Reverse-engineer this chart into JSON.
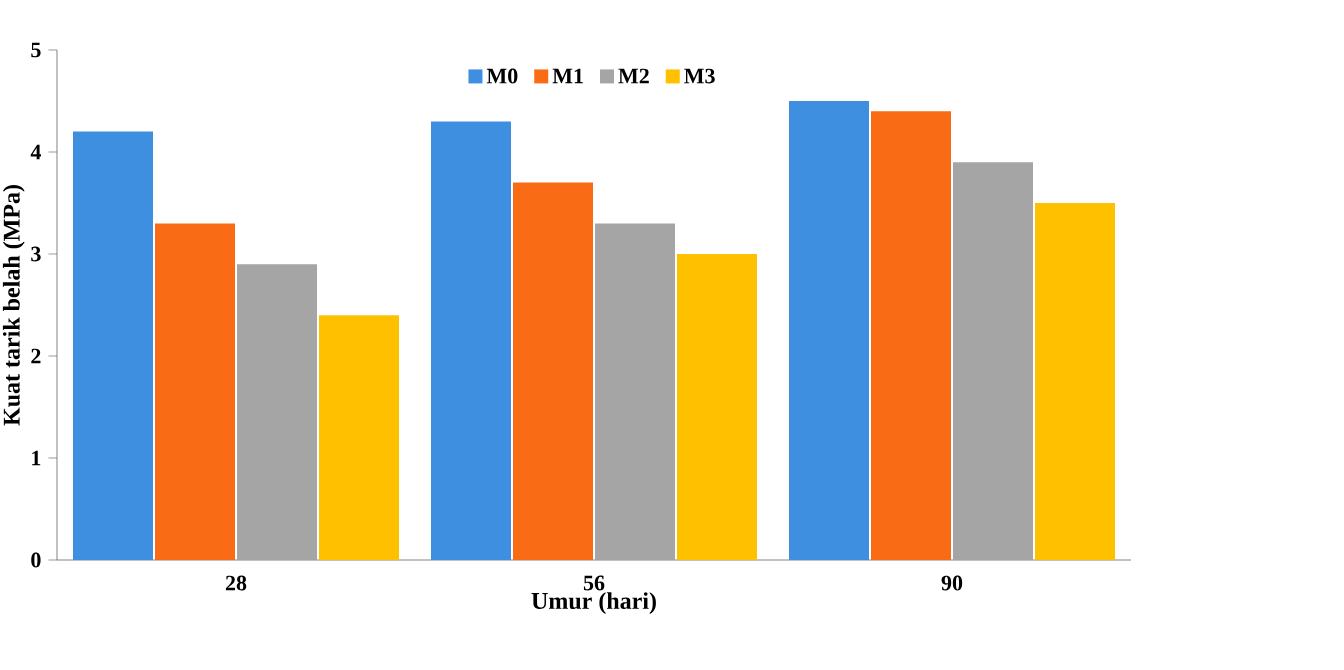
{
  "chart_data": {
    "type": "bar",
    "xlabel": "Umur  (hari)",
    "ylabel": "Kuat tarik belah (MPa)",
    "categories": [
      "28",
      "56",
      "90"
    ],
    "series": [
      {
        "name": "M0",
        "color": "#3f8fe0",
        "values": [
          4.2,
          4.3,
          4.5
        ]
      },
      {
        "name": "M1",
        "color": "#f96b15",
        "values": [
          3.3,
          3.7,
          4.4
        ]
      },
      {
        "name": "M2",
        "color": "#a5a5a5",
        "values": [
          2.9,
          3.3,
          3.9
        ]
      },
      {
        "name": "M3",
        "color": "#ffc000",
        "values": [
          2.4,
          3.0,
          3.5
        ]
      }
    ],
    "ylim": [
      0,
      5
    ],
    "yticks": [
      0,
      1,
      2,
      3,
      4,
      5
    ],
    "grid": false,
    "legend": "top"
  }
}
